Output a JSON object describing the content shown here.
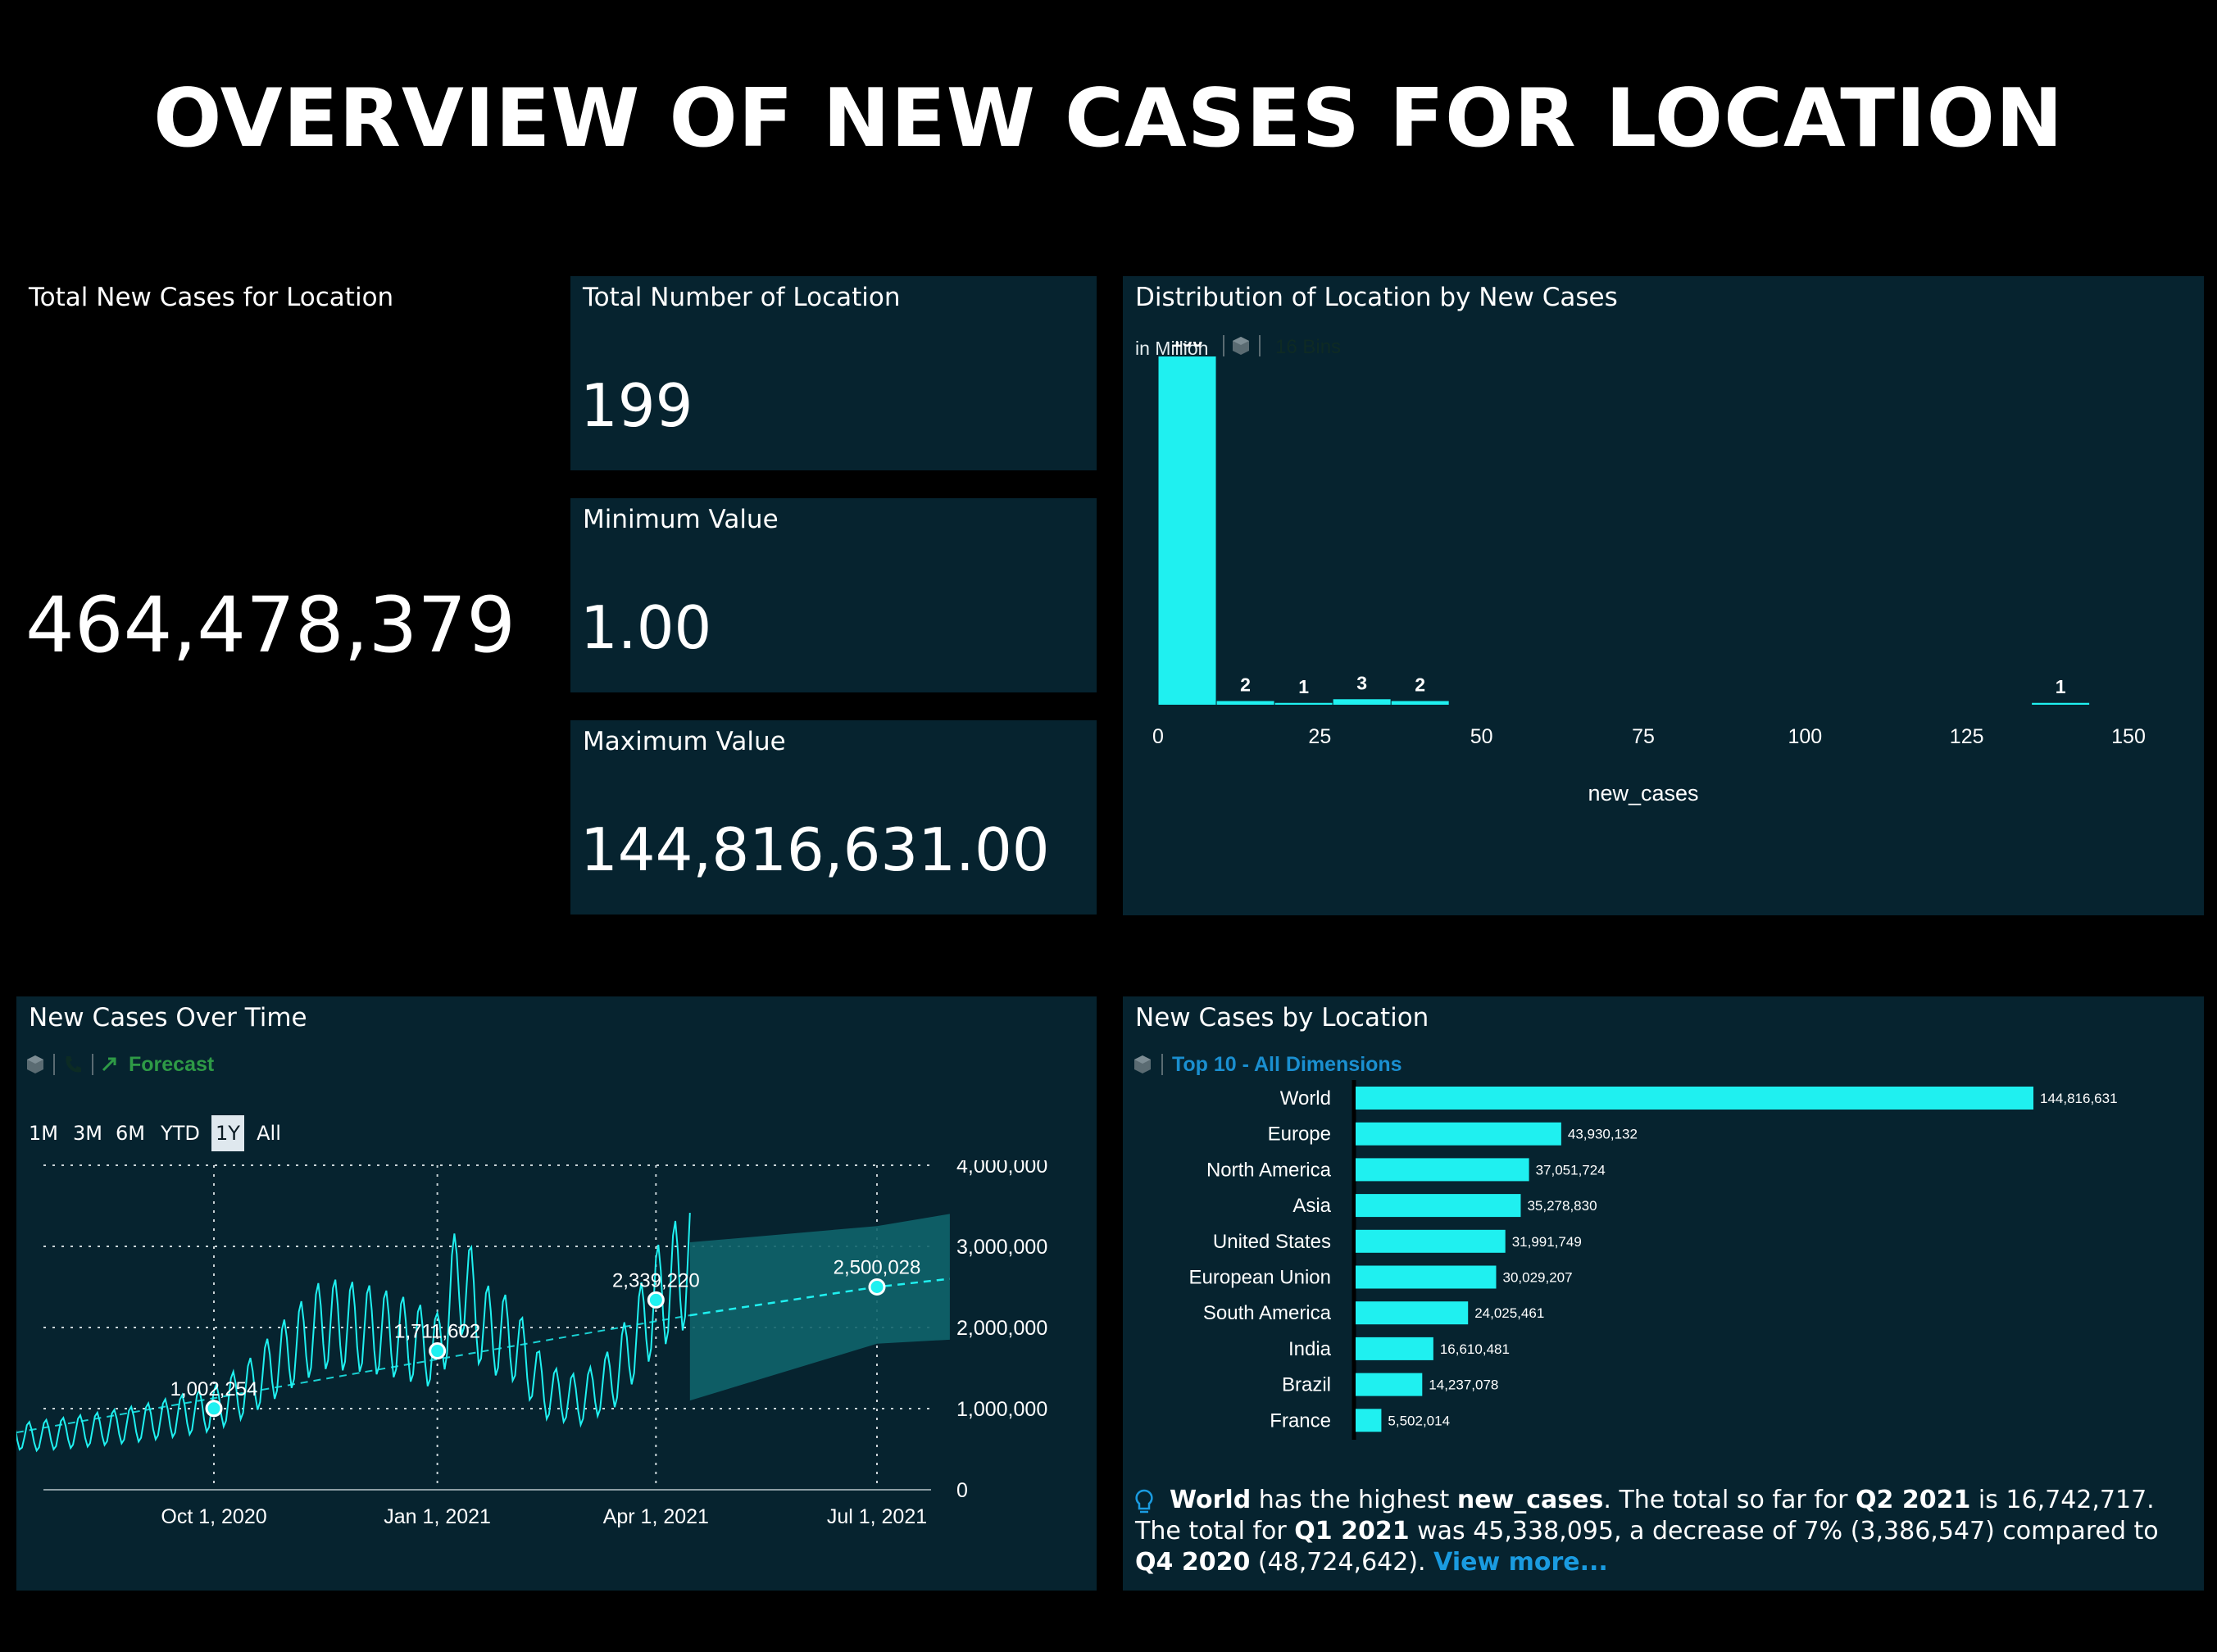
{
  "page": {
    "title": "OVERVIEW OF NEW CASES FOR LOCATION"
  },
  "kpis": {
    "total_new_cases": {
      "title": "Total New Cases for Location",
      "value": "464,478,379"
    },
    "total_locations": {
      "title": "Total Number of Location",
      "value": "199"
    },
    "minimum": {
      "title": "Minimum Value",
      "value": "1.00"
    },
    "maximum": {
      "title": "Maximum Value",
      "value": "144,816,631.00"
    }
  },
  "histogram": {
    "title": "Distribution of Location by New Cases",
    "unit_label": "in Million",
    "bins_label": "16 Bins",
    "icon": "cube-icon"
  },
  "timeseries": {
    "title": "New Cases Over Time",
    "forecast_label": "Forecast",
    "icons": [
      "cube-icon",
      "phone-icon",
      "trend-arrow-icon"
    ],
    "ranges": [
      "1M",
      "3M",
      "6M",
      "YTD",
      "1Y",
      "All"
    ],
    "active_range": "1Y"
  },
  "bar_chart": {
    "title": "New Cases by Location",
    "filter_label": "Top 10 - All Dimensions",
    "icon": "cube-icon"
  },
  "insight": {
    "icon": "lightbulb-icon",
    "parts": {
      "p1": "World",
      "p2": " has the highest ",
      "p3": "new_cases",
      "p4": ". The total so far for ",
      "p5": "Q2 2021",
      "p6": " is 16,742,717. The total for ",
      "p7": "Q1 2021",
      "p8": " was 45,338,095, a decrease of 7% (3,386,547) compared to ",
      "p9": "Q4 2020",
      "p10": " (48,724,642). ",
      "link": "View more..."
    }
  },
  "colors": {
    "background": "#000000",
    "panel": "#06232f",
    "accent": "#1ff0f0",
    "forecast_band": "#10646b",
    "link": "#1a9be0",
    "forecast_text": "#2e9a46"
  },
  "chart_data": [
    {
      "type": "bar",
      "title": "Distribution of Location by New Cases",
      "subtitle": "in Million",
      "xlabel": "new_cases",
      "xlim": [
        0,
        150
      ],
      "x_ticks": [
        0,
        25,
        50,
        75,
        100,
        125,
        150
      ],
      "bins": [
        {
          "x": 4.5,
          "count": 190
        },
        {
          "x": 13.5,
          "count": 2
        },
        {
          "x": 22.5,
          "count": 1
        },
        {
          "x": 31.5,
          "count": 3
        },
        {
          "x": 40.5,
          "count": 2
        },
        {
          "x": 139.5,
          "count": 1
        }
      ],
      "bins_total": 16
    },
    {
      "type": "line",
      "title": "New Cases Over Time",
      "x_ticks": [
        "Oct 1, 2020",
        "Jan 1, 2021",
        "Apr 1, 2021",
        "Jul 1, 2021"
      ],
      "y_ticks": [
        "0",
        "1,000,000",
        "2,000,000",
        "3,000,000",
        "4,000,000"
      ],
      "ylim": [
        0,
        4000000
      ],
      "series": [
        {
          "x": [
            "2020-07-01",
            "2020-07-15",
            "2020-08-01",
            "2020-08-15",
            "2020-09-01",
            "2020-09-15",
            "2020-10-01",
            "2020-10-15",
            "2020-11-01",
            "2020-11-15",
            "2020-12-01",
            "2020-12-15",
            "2021-01-01",
            "2021-01-10",
            "2021-01-20",
            "2021-02-01",
            "2021-02-15",
            "2021-03-01",
            "2021-03-15",
            "2021-04-01",
            "2021-04-15"
          ],
          "values": [
            880000,
            650000,
            700000,
            750000,
            820000,
            900000,
            1002254,
            1250000,
            1700000,
            2050000,
            2000000,
            1900000,
            1711602,
            2700000,
            2000000,
            1850000,
            1200000,
            1100000,
            1400000,
            2339220,
            2800000
          ]
        },
        {
          "x": [
            "2021-04-15",
            "2021-07-01",
            "2021-07-31"
          ],
          "values": [
            2150000,
            2500028,
            2600000
          ],
          "band_low": [
            1100000,
            1800000,
            1850000
          ],
          "band_high": [
            3050000,
            3250000,
            3400000
          ]
        }
      ],
      "annotations": [
        {
          "x": "2020-10-01",
          "y": 1002254,
          "label": "1,002,254"
        },
        {
          "x": "2021-01-01",
          "y": 1711602,
          "label": "1,711,602"
        },
        {
          "x": "2021-04-01",
          "y": 2339220,
          "label": "2,339,220"
        },
        {
          "x": "2021-07-01",
          "y": 2500028,
          "label": "2,500,028"
        }
      ]
    },
    {
      "type": "bar",
      "orientation": "horizontal",
      "title": "New Cases by Location",
      "subtitle": "Top 10 - All Dimensions",
      "categories": [
        "World",
        "Europe",
        "North America",
        "Asia",
        "United States",
        "European Union",
        "South America",
        "India",
        "Brazil",
        "France"
      ],
      "values": [
        144816631,
        43930132,
        37051724,
        35278830,
        31991749,
        30029207,
        24025461,
        16610481,
        14237078,
        5502014
      ],
      "labels": [
        "144,816,631",
        "43,930,132",
        "37,051,724",
        "35,278,830",
        "31,991,749",
        "30,029,207",
        "24,025,461",
        "16,610,481",
        "14,237,078",
        "5,502,014"
      ]
    }
  ]
}
